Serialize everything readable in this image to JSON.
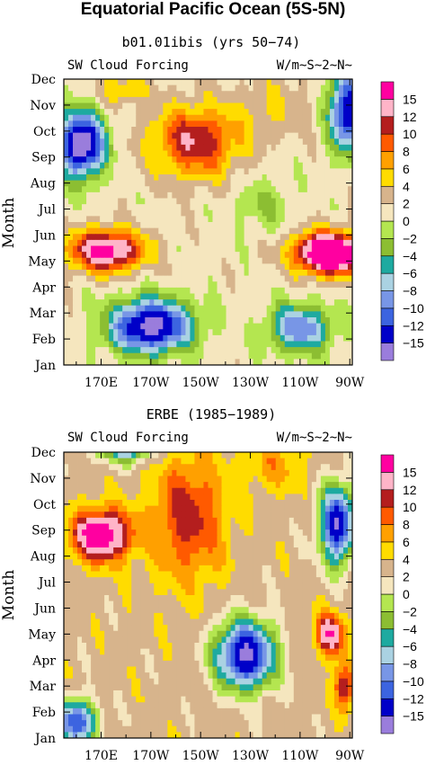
{
  "figure_title": "Equatorial Pacific Ocean (5S-5N)",
  "chart_data": [
    {
      "type": "heatmap",
      "title": "b01.01ibis (yrs 50−74)",
      "left_label": "SW Cloud Forcing",
      "right_label": "W/m~S~2~N~",
      "ylabel": "Month",
      "xlabel": "",
      "y_ticks": [
        "Jan",
        "Feb",
        "Mar",
        "Apr",
        "May",
        "Jun",
        "Jul",
        "Aug",
        "Sep",
        "Oct",
        "Nov",
        "Dec"
      ],
      "x_ticks": [
        "170E",
        "170W",
        "150W",
        "130W",
        "110W",
        "90W"
      ],
      "x_tick_lons": [
        170,
        190,
        210,
        230,
        250,
        270
      ],
      "xlim": [
        155,
        271
      ],
      "features": [
        {
          "lon": 162,
          "month": 8.5,
          "amp": -20,
          "slon": 9,
          "smon": 1.2
        },
        {
          "lon": 190,
          "month": 1.5,
          "amp": -18,
          "slon": 16,
          "smon": 1.0
        },
        {
          "lon": 250,
          "month": 1.4,
          "amp": -11,
          "slon": 12,
          "smon": 0.9
        },
        {
          "lon": 269,
          "month": 9.8,
          "amp": -16,
          "slon": 7,
          "smon": 1.5
        },
        {
          "lon": 172,
          "month": 4.4,
          "amp": 16,
          "slon": 15,
          "smon": 0.8
        },
        {
          "lon": 262,
          "month": 4.3,
          "amp": 22,
          "slon": 14,
          "smon": 0.8
        },
        {
          "lon": 208,
          "month": 8.6,
          "amp": 11,
          "slon": 18,
          "smon": 1.4
        },
        {
          "lon": 178,
          "month": 10.6,
          "amp": 5,
          "slon": 10,
          "smon": 0.6
        },
        {
          "lon": 240,
          "month": 10.0,
          "amp": 3,
          "slon": 15,
          "smon": 1.2
        },
        {
          "lon": 235,
          "month": 6.2,
          "amp": -3,
          "slon": 12,
          "smon": 1.0
        }
      ],
      "base": 1
    },
    {
      "type": "heatmap",
      "title": "ERBE (1985−1989)",
      "left_label": "SW Cloud Forcing",
      "right_label": "W/m~S~2~N~",
      "ylabel": "Month",
      "xlabel": "",
      "y_ticks": [
        "Jan",
        "Feb",
        "Mar",
        "Apr",
        "May",
        "Jun",
        "Jul",
        "Aug",
        "Sep",
        "Oct",
        "Nov",
        "Dec"
      ],
      "x_ticks": [
        "170E",
        "170W",
        "150W",
        "130W",
        "110W",
        "90W"
      ],
      "x_tick_lons": [
        170,
        190,
        210,
        230,
        250,
        270
      ],
      "xlim": [
        155,
        271
      ],
      "features": [
        {
          "lon": 170,
          "month": 7.8,
          "amp": 15,
          "slon": 12,
          "smon": 1.0
        },
        {
          "lon": 205,
          "month": 8.5,
          "amp": 8,
          "slon": 15,
          "smon": 2.5
        },
        {
          "lon": 228,
          "month": 3.2,
          "amp": -19,
          "slon": 12,
          "smon": 1.3
        },
        {
          "lon": 160,
          "month": 0.6,
          "amp": -15,
          "slon": 8,
          "smon": 0.9
        },
        {
          "lon": 180,
          "month": 11.2,
          "amp": -12,
          "slon": 11,
          "smon": 0.6
        },
        {
          "lon": 265,
          "month": 8.2,
          "amp": -18,
          "slon": 7,
          "smon": 1.5
        },
        {
          "lon": 262,
          "month": 4.0,
          "amp": 12,
          "slon": 6,
          "smon": 0.8
        },
        {
          "lon": 268,
          "month": 2.0,
          "amp": 10,
          "slon": 4,
          "smon": 0.9
        },
        {
          "lon": 240,
          "month": 10.5,
          "amp": 4,
          "slon": 12,
          "smon": 1.0
        }
      ],
      "base": 3
    }
  ],
  "colorbar": {
    "labels": [
      "15",
      "12",
      "10",
      "8",
      "6",
      "4",
      "2",
      "0",
      "−2",
      "−4",
      "−6",
      "−8",
      "−10",
      "−12",
      "−15"
    ],
    "levels": [
      -15,
      -12,
      -10,
      -8,
      -6,
      -4,
      -2,
      0,
      2,
      4,
      6,
      8,
      10,
      12,
      15
    ],
    "colors": [
      "#9a7ddc",
      "#0000c8",
      "#3c64e0",
      "#7896e6",
      "#aad2e2",
      "#1eaaa0",
      "#8cbe32",
      "#b4e650",
      "#f5e6be",
      "#d7b48c",
      "#ffdc00",
      "#ffa000",
      "#ff5a00",
      "#b41e1e",
      "#ffb4c8",
      "#ff00a0"
    ]
  }
}
